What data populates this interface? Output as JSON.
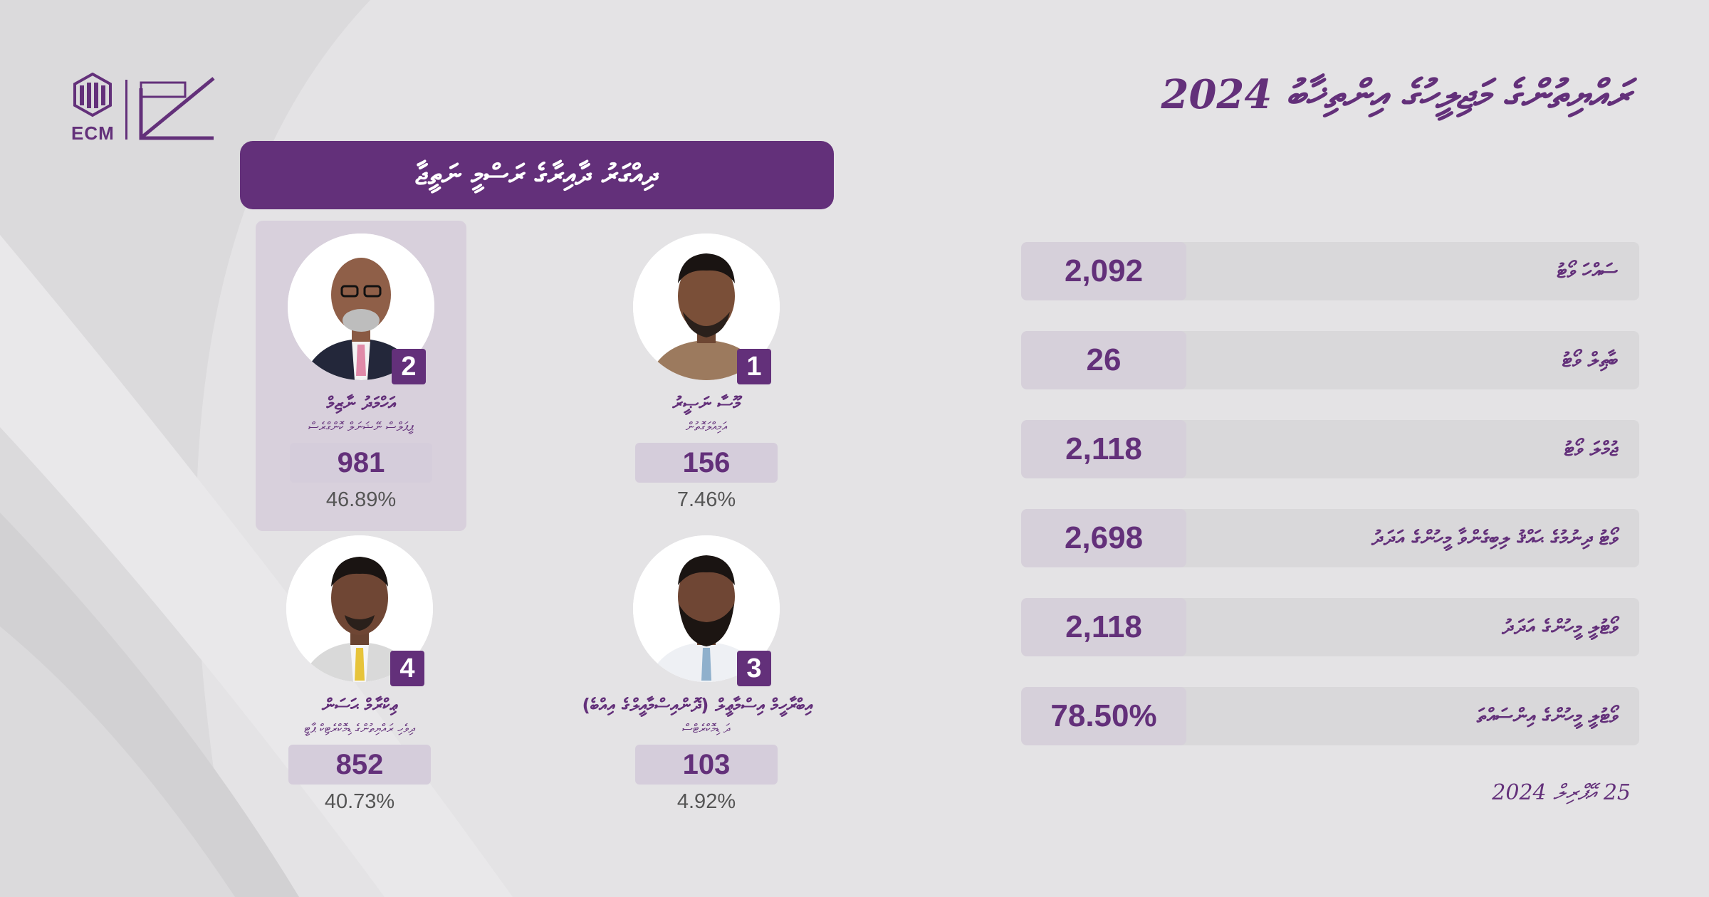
{
  "logo": {
    "text": "ECM"
  },
  "header": {
    "title": "ރައްޔިތުންގެ މަޖިލީހުގެ އިންތިޚާބު 2024"
  },
  "banner": {
    "text": "ދިއްގަރު ދާއިރާގެ ރަސްމީ ނަތީޖާ"
  },
  "candidates": [
    {
      "number": "1",
      "name": "މޫސާ ނަޞީރު",
      "party": "އަމިއްލަގޮތުން",
      "votes": "156",
      "percent": "7.46%",
      "winner": false
    },
    {
      "number": "2",
      "name": "އަހްމަދު ނާޒިމް",
      "party": "ޕީޕަލްސް ނޭޝަނަލް ކޮންގްރެސް",
      "votes": "981",
      "percent": "46.89%",
      "winner": true
    },
    {
      "number": "3",
      "name": "އިބްރާހީމް އިސްމާޢީލް (ދޮންއިސްމާއީލްގެ އިއްބެ)",
      "party": "ދަ ޑިމޮކްރެޓްސް",
      "votes": "103",
      "percent": "4.92%",
      "winner": false
    },
    {
      "number": "4",
      "name": "ޢިކްރާމް ޙަސަން",
      "party": "ދިވެހި ރައްޔިތުންގެ ޑިމޮކްރެޓިކް ޕާޓީ",
      "votes": "852",
      "percent": "40.73%",
      "winner": false
    }
  ],
  "stats": [
    {
      "label": "ސައްހަ ވޯޓު",
      "value": "2,092"
    },
    {
      "label": "ބާޠިލް ވޯޓު",
      "value": "26"
    },
    {
      "label": "ޖުމްލަ ވޯޓު",
      "value": "2,118"
    },
    {
      "label": "ވޯޓު ދިނުމުގެ ޙައްޤު ލިބިގެންވާ މީހުންގެ އަދަދު",
      "value": "2,698"
    },
    {
      "label": "ވޯޓުލީ މީހުންގެ އަދަދު",
      "value": "2,118"
    },
    {
      "label": "ވޯޓުލީ މީހުންގެ އިންސައްތަ",
      "value": "78.50%"
    }
  ],
  "date": "25 އޭޕްރިލް 2024",
  "colors": {
    "brand": "#63307a",
    "background": "#e4e3e5",
    "panel": "#d8d0dc"
  }
}
